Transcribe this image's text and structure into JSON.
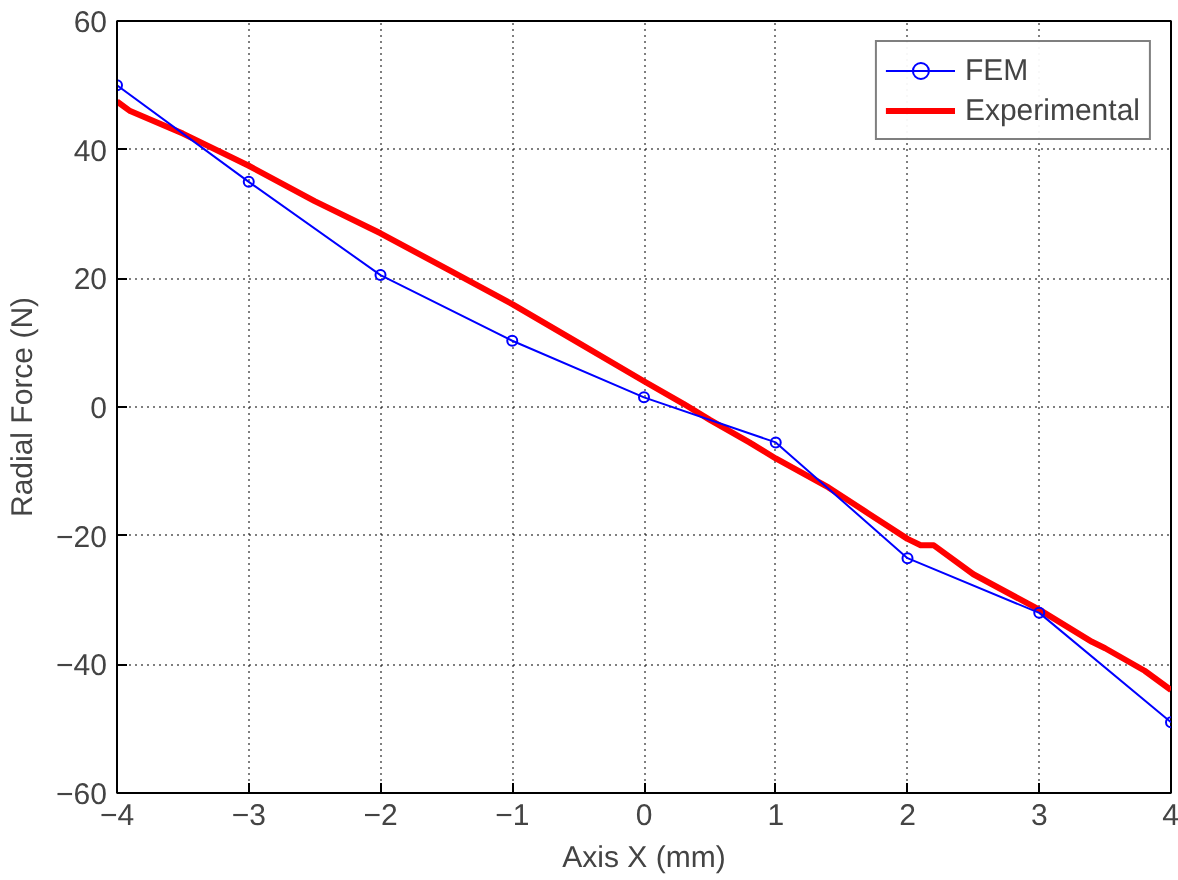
{
  "chart_data": {
    "type": "line",
    "xlabel": "Axis X (mm)",
    "ylabel": "Radial Force (N)",
    "xlim": [
      -4,
      4
    ],
    "ylim": [
      -60,
      60
    ],
    "xticks": [
      -4,
      -3,
      -2,
      -1,
      0,
      1,
      2,
      3,
      4
    ],
    "yticks": [
      -60,
      -40,
      -20,
      0,
      20,
      40,
      60
    ],
    "grid": true,
    "legend": "top right",
    "series": [
      {
        "name": "FEM",
        "color": "#0000ff",
        "marker": "circle",
        "x": [
          -4,
          -3,
          -2,
          -1,
          0,
          1,
          2,
          3,
          4
        ],
        "values": [
          50,
          35,
          20.5,
          10.3,
          1.5,
          -5.5,
          -23.5,
          -32,
          -49
        ]
      },
      {
        "name": "Experimental",
        "color": "#ff0000",
        "marker": "none",
        "x": [
          -4,
          -3.9,
          -3.5,
          -3,
          -2.5,
          -2,
          -1.5,
          -1,
          -0.5,
          0,
          0.3,
          0.5,
          0.8,
          1,
          1.4,
          1.7,
          2,
          2.1,
          2.2,
          2.5,
          3,
          3.4,
          3.5,
          3.8,
          4
        ],
        "values": [
          47.5,
          46,
          42.5,
          37.5,
          32,
          27,
          21.5,
          16,
          10,
          4,
          0.5,
          -2,
          -5.5,
          -8,
          -12.5,
          -16.5,
          -20.5,
          -21.5,
          -21.5,
          -26,
          -31.5,
          -36.5,
          -37.5,
          -41,
          -44
        ]
      }
    ]
  }
}
